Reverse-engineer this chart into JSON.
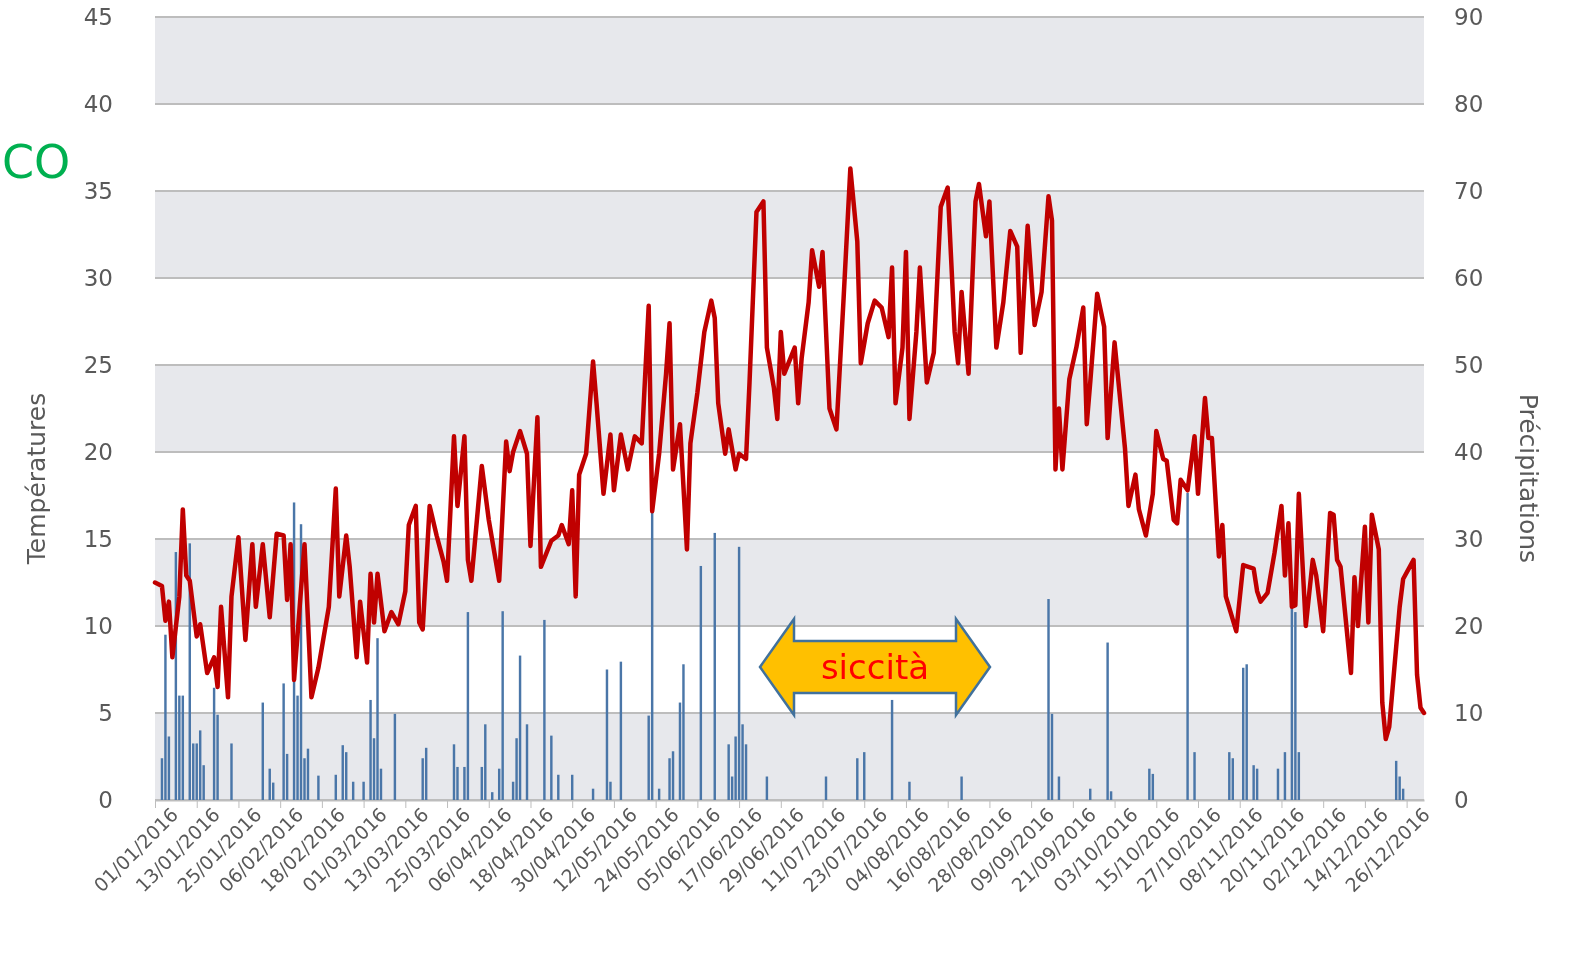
{
  "chart_data": {
    "type": "bar",
    "ylabel": "Températures",
    "y2label": "Précipitations",
    "xlim": [
      "2016-01-01",
      "2016-12-31"
    ],
    "xticks": [
      {
        "value": "2016-01-01",
        "label": "01/01/2016"
      },
      {
        "value": "2016-01-13",
        "label": "13/01/2016"
      },
      {
        "value": "2016-01-25",
        "label": "25/01/2016"
      },
      {
        "value": "2016-02-06",
        "label": "06/02/2016"
      },
      {
        "value": "2016-02-18",
        "label": "18/02/2016"
      },
      {
        "value": "2016-03-01",
        "label": "01/03/2016"
      },
      {
        "value": "2016-03-13",
        "label": "13/03/2016"
      },
      {
        "value": "2016-03-25",
        "label": "25/03/2016"
      },
      {
        "value": "2016-04-06",
        "label": "06/04/2016"
      },
      {
        "value": "2016-04-18",
        "label": "18/04/2016"
      },
      {
        "value": "2016-04-30",
        "label": "30/04/2016"
      },
      {
        "value": "2016-05-12",
        "label": "12/05/2016"
      },
      {
        "value": "2016-05-24",
        "label": "24/05/2016"
      },
      {
        "value": "2016-06-05",
        "label": "05/06/2016"
      },
      {
        "value": "2016-06-17",
        "label": "17/06/2016"
      },
      {
        "value": "2016-06-29",
        "label": "29/06/2016"
      },
      {
        "value": "2016-07-11",
        "label": "11/07/2016"
      },
      {
        "value": "2016-07-23",
        "label": "23/07/2016"
      },
      {
        "value": "2016-08-04",
        "label": "04/08/2016"
      },
      {
        "value": "2016-08-16",
        "label": "16/08/2016"
      },
      {
        "value": "2016-08-28",
        "label": "28/08/2016"
      },
      {
        "value": "2016-09-09",
        "label": "09/09/2016"
      },
      {
        "value": "2016-09-21",
        "label": "21/09/2016"
      },
      {
        "value": "2016-10-03",
        "label": "03/10/2016"
      },
      {
        "value": "2016-10-15",
        "label": "15/10/2016"
      },
      {
        "value": "2016-10-27",
        "label": "27/10/2016"
      },
      {
        "value": "2016-11-08",
        "label": "08/11/2016"
      },
      {
        "value": "2016-11-20",
        "label": "20/11/2016"
      },
      {
        "value": "2016-12-02",
        "label": "02/12/2016"
      },
      {
        "value": "2016-12-14",
        "label": "14/12/2016"
      },
      {
        "value": "2016-12-26",
        "label": "26/12/2016"
      }
    ],
    "ylim": [
      0,
      45
    ],
    "yticks": [
      0,
      5,
      10,
      15,
      20,
      25,
      30,
      35,
      40,
      45
    ],
    "y2lim": [
      0,
      90
    ],
    "y2ticks": [
      0,
      10,
      20,
      30,
      40,
      50,
      60,
      70,
      80,
      90
    ],
    "grid": "y",
    "series": [
      {
        "axis": "y2",
        "color": "#4a76a8",
        "x": [
          "2016-01-03",
          "2016-01-04",
          "2016-01-05",
          "2016-01-07",
          "2016-01-08",
          "2016-01-09",
          "2016-01-11",
          "2016-01-12",
          "2016-01-13",
          "2016-01-14",
          "2016-01-15",
          "2016-01-18",
          "2016-01-19",
          "2016-01-23",
          "2016-02-01",
          "2016-02-03",
          "2016-02-04",
          "2016-02-07",
          "2016-02-08",
          "2016-02-10",
          "2016-02-11",
          "2016-02-12",
          "2016-02-13",
          "2016-02-14",
          "2016-02-17",
          "2016-02-22",
          "2016-02-24",
          "2016-02-25",
          "2016-02-27",
          "2016-03-01",
          "2016-03-03",
          "2016-03-04",
          "2016-03-05",
          "2016-03-06",
          "2016-03-10",
          "2016-03-18",
          "2016-03-19",
          "2016-03-27",
          "2016-03-28",
          "2016-03-30",
          "2016-03-31",
          "2016-04-04",
          "2016-04-05",
          "2016-04-07",
          "2016-04-09",
          "2016-04-10",
          "2016-04-13",
          "2016-04-14",
          "2016-04-15",
          "2016-04-17",
          "2016-04-22",
          "2016-04-24",
          "2016-04-26",
          "2016-04-30",
          "2016-05-06",
          "2016-05-10",
          "2016-05-11",
          "2016-05-14",
          "2016-05-22",
          "2016-05-23",
          "2016-05-25",
          "2016-05-28",
          "2016-05-29",
          "2016-05-31",
          "2016-06-01",
          "2016-06-06",
          "2016-06-10",
          "2016-06-14",
          "2016-06-15",
          "2016-06-16",
          "2016-06-17",
          "2016-06-18",
          "2016-06-19",
          "2016-06-25",
          "2016-07-12",
          "2016-07-21",
          "2016-07-23",
          "2016-07-31",
          "2016-08-05",
          "2016-08-20",
          "2016-09-14",
          "2016-09-15",
          "2016-09-17",
          "2016-09-26",
          "2016-10-01",
          "2016-10-02",
          "2016-10-13",
          "2016-10-14",
          "2016-10-24",
          "2016-10-26",
          "2016-11-05",
          "2016-11-06",
          "2016-11-09",
          "2016-11-10",
          "2016-11-12",
          "2016-11-13",
          "2016-11-19",
          "2016-11-21",
          "2016-11-23",
          "2016-11-24",
          "2016-11-25",
          "2016-12-23",
          "2016-12-24",
          "2016-12-25"
        ],
        "values": [
          4.8,
          19,
          7.3,
          28.5,
          12,
          12,
          29.5,
          6.5,
          6.5,
          8,
          4,
          12.9,
          9.8,
          6.5,
          11.2,
          3.6,
          2,
          13.4,
          5.3,
          34.2,
          12,
          31.7,
          4.8,
          5.9,
          2.8,
          2.9,
          6.3,
          5.5,
          2.1,
          2.1,
          11.5,
          7.1,
          18.6,
          3.6,
          9.9,
          4.8,
          6,
          6.4,
          3.8,
          3.8,
          21.6,
          3.8,
          8.7,
          0.9,
          3.6,
          21.7,
          2.1,
          7.1,
          16.6,
          8.7,
          20.7,
          7.4,
          2.9,
          2.9,
          1.3,
          15,
          2.1,
          15.9,
          9.7,
          33.3,
          1.3,
          4.8,
          5.6,
          11.2,
          15.6,
          26.9,
          30.7,
          6.4,
          2.7,
          7.3,
          29.1,
          8.7,
          6.4,
          2.7,
          2.7,
          4.8,
          5.5,
          11.5,
          2.1,
          2.7,
          23.1,
          9.9,
          2.7,
          1.3,
          18.1,
          1,
          3.6,
          3,
          35.3,
          5.5,
          5.5,
          4.8,
          15.2,
          15.6,
          4,
          3.6,
          3.6,
          5.5,
          22.2,
          21.6,
          5.5,
          4.5,
          2.7,
          1.3
        ]
      },
      {
        "type": "line",
        "axis": "y",
        "color": "#c00000",
        "x": [
          "2016-01-01",
          "2016-01-03",
          "2016-01-04",
          "2016-01-05",
          "2016-01-06",
          "2016-01-08",
          "2016-01-09",
          "2016-01-10",
          "2016-01-11",
          "2016-01-13",
          "2016-01-14",
          "2016-01-16",
          "2016-01-18",
          "2016-01-19",
          "2016-01-20",
          "2016-01-22",
          "2016-01-23",
          "2016-01-25",
          "2016-01-27",
          "2016-01-29",
          "2016-01-30",
          "2016-02-01",
          "2016-02-03",
          "2016-02-05",
          "2016-02-07",
          "2016-02-08",
          "2016-02-09",
          "2016-02-10",
          "2016-02-13",
          "2016-02-15",
          "2016-02-17",
          "2016-02-20",
          "2016-02-22",
          "2016-02-23",
          "2016-02-25",
          "2016-02-26",
          "2016-02-28",
          "2016-02-29",
          "2016-03-02",
          "2016-03-03",
          "2016-03-04",
          "2016-03-05",
          "2016-03-07",
          "2016-03-09",
          "2016-03-11",
          "2016-03-13",
          "2016-03-14",
          "2016-03-16",
          "2016-03-17",
          "2016-03-18",
          "2016-03-20",
          "2016-03-22",
          "2016-03-24",
          "2016-03-25",
          "2016-03-27",
          "2016-03-28",
          "2016-03-30",
          "2016-03-31",
          "2016-04-01",
          "2016-04-04",
          "2016-04-06",
          "2016-04-09",
          "2016-04-11",
          "2016-04-12",
          "2016-04-13",
          "2016-04-15",
          "2016-04-17",
          "2016-04-18",
          "2016-04-20",
          "2016-04-21",
          "2016-04-24",
          "2016-04-26",
          "2016-04-27",
          "2016-04-29",
          "2016-04-30",
          "2016-05-01",
          "2016-05-02",
          "2016-05-04",
          "2016-05-06",
          "2016-05-07",
          "2016-05-09",
          "2016-05-11",
          "2016-05-12",
          "2016-05-14",
          "2016-05-16",
          "2016-05-18",
          "2016-05-20",
          "2016-05-22",
          "2016-05-23",
          "2016-05-25",
          "2016-05-27",
          "2016-05-28",
          "2016-05-29",
          "2016-05-31",
          "2016-06-02",
          "2016-06-03",
          "2016-06-05",
          "2016-06-07",
          "2016-06-09",
          "2016-06-10",
          "2016-06-11",
          "2016-06-13",
          "2016-06-14",
          "2016-06-16",
          "2016-06-17",
          "2016-06-19",
          "2016-06-20",
          "2016-06-22",
          "2016-06-24",
          "2016-06-25",
          "2016-06-27",
          "2016-06-28",
          "2016-06-29",
          "2016-06-30",
          "2016-07-03",
          "2016-07-04",
          "2016-07-05",
          "2016-07-07",
          "2016-07-08",
          "2016-07-10",
          "2016-07-11",
          "2016-07-13",
          "2016-07-15",
          "2016-07-17",
          "2016-07-19",
          "2016-07-21",
          "2016-07-22",
          "2016-07-24",
          "2016-07-26",
          "2016-07-28",
          "2016-07-30",
          "2016-07-31",
          "2016-08-01",
          "2016-08-03",
          "2016-08-04",
          "2016-08-05",
          "2016-08-07",
          "2016-08-08",
          "2016-08-10",
          "2016-08-12",
          "2016-08-14",
          "2016-08-16",
          "2016-08-18",
          "2016-08-19",
          "2016-08-20",
          "2016-08-22",
          "2016-08-24",
          "2016-08-25",
          "2016-08-27",
          "2016-08-28",
          "2016-08-30",
          "2016-09-01",
          "2016-09-03",
          "2016-09-05",
          "2016-09-06",
          "2016-09-08",
          "2016-09-10",
          "2016-09-12",
          "2016-09-14",
          "2016-09-15",
          "2016-09-16",
          "2016-09-17",
          "2016-09-18",
          "2016-09-20",
          "2016-09-22",
          "2016-09-24",
          "2016-09-25",
          "2016-09-26",
          "2016-09-28",
          "2016-09-30",
          "2016-10-01",
          "2016-10-03",
          "2016-10-06",
          "2016-10-07",
          "2016-10-09",
          "2016-10-10",
          "2016-10-12",
          "2016-10-14",
          "2016-10-15",
          "2016-10-17",
          "2016-10-18",
          "2016-10-20",
          "2016-10-21",
          "2016-10-22",
          "2016-10-24",
          "2016-10-26",
          "2016-10-27",
          "2016-10-29",
          "2016-10-30",
          "2016-10-31",
          "2016-11-02",
          "2016-11-03",
          "2016-11-04",
          "2016-11-07",
          "2016-11-09",
          "2016-11-12",
          "2016-11-13",
          "2016-11-14",
          "2016-11-16",
          "2016-11-18",
          "2016-11-20",
          "2016-11-21",
          "2016-11-22",
          "2016-11-23",
          "2016-11-24",
          "2016-11-25",
          "2016-11-27",
          "2016-11-29",
          "2016-11-30",
          "2016-12-02",
          "2016-12-04",
          "2016-12-05",
          "2016-12-06",
          "2016-12-07",
          "2016-12-10",
          "2016-12-11",
          "2016-12-12",
          "2016-12-14",
          "2016-12-15",
          "2016-12-16",
          "2016-12-18",
          "2016-12-19",
          "2016-12-20",
          "2016-12-21",
          "2016-12-23",
          "2016-12-24",
          "2016-12-25",
          "2016-12-28",
          "2016-12-29",
          "2016-12-30",
          "2016-12-31"
        ],
        "values": [
          12.5,
          12.3,
          10.3,
          11.4,
          8.2,
          11.7,
          16.7,
          12.9,
          12.6,
          9.4,
          10.1,
          7.3,
          8.2,
          6.5,
          11.1,
          5.9,
          11.7,
          15.1,
          9.2,
          14.7,
          11.1,
          14.7,
          10.5,
          15.3,
          15.2,
          11.5,
          14.7,
          6.9,
          14.7,
          5.9,
          7.6,
          11.1,
          17.9,
          11.7,
          15.2,
          13.4,
          8.2,
          11.4,
          7.9,
          13,
          10.2,
          13,
          9.7,
          10.8,
          10.1,
          12,
          15.8,
          16.9,
          10.2,
          9.8,
          16.9,
          15.2,
          13.7,
          12.6,
          20.9,
          16.9,
          20.9,
          13.8,
          12.6,
          19.2,
          16.1,
          12.6,
          20.6,
          18.9,
          20,
          21.2,
          19.9,
          14.6,
          22,
          13.4,
          14.9,
          15.2,
          15.8,
          14.7,
          17.8,
          11.7,
          18.7,
          19.9,
          25.2,
          22.8,
          17.6,
          21,
          17.8,
          21,
          19,
          20.9,
          20.5,
          28.4,
          16.6,
          19.9,
          24.5,
          27.4,
          19,
          21.6,
          14.4,
          20.5,
          23.4,
          26.9,
          28.7,
          27.7,
          22.8,
          19.9,
          21.3,
          19,
          19.9,
          19.6,
          24,
          33.8,
          34.4,
          26,
          23.7,
          21.9,
          26.9,
          24.5,
          26,
          22.8,
          25.4,
          28.6,
          31.6,
          29.5,
          31.5,
          22.5,
          21.3,
          28.6,
          36.3,
          32.1,
          25.1,
          27.4,
          28.7,
          28.3,
          26.6,
          30.6,
          22.8,
          26,
          31.5,
          21.9,
          26.9,
          30.6,
          24,
          25.7,
          34.1,
          35.2,
          26.9,
          25.1,
          29.2,
          24.5,
          34.4,
          35.4,
          32.4,
          34.4,
          26,
          28.6,
          32.7,
          31.8,
          25.7,
          33,
          27.3,
          29.2,
          34.7,
          33.3,
          19,
          22.5,
          19,
          24.2,
          26,
          28.3,
          21.6,
          24,
          29.1,
          27.2,
          20.8,
          26.3,
          20.2,
          16.9,
          18.7,
          16.7,
          15.2,
          17.6,
          21.2,
          19.6,
          19.5,
          16.1,
          15.9,
          18.4,
          17.8,
          20.9,
          17.6,
          23.1,
          20.8,
          20.8,
          14,
          15.8,
          11.7,
          9.7,
          13.5,
          13.3,
          12,
          11.4,
          11.9,
          14.2,
          16.9,
          12.9,
          15.9,
          11.1,
          11.2,
          17.6,
          10,
          13.8,
          12.9,
          9.7,
          16.5,
          16.4,
          13.8,
          13.4,
          7.3,
          12.8,
          10,
          15.7,
          10.2,
          16.4,
          14.4,
          5.6,
          3.5,
          4.2,
          8.8,
          11.1,
          12.7,
          13.8,
          7.2,
          5.3,
          5
        ]
      }
    ],
    "annotations": [
      "siccità",
      "CO"
    ]
  }
}
